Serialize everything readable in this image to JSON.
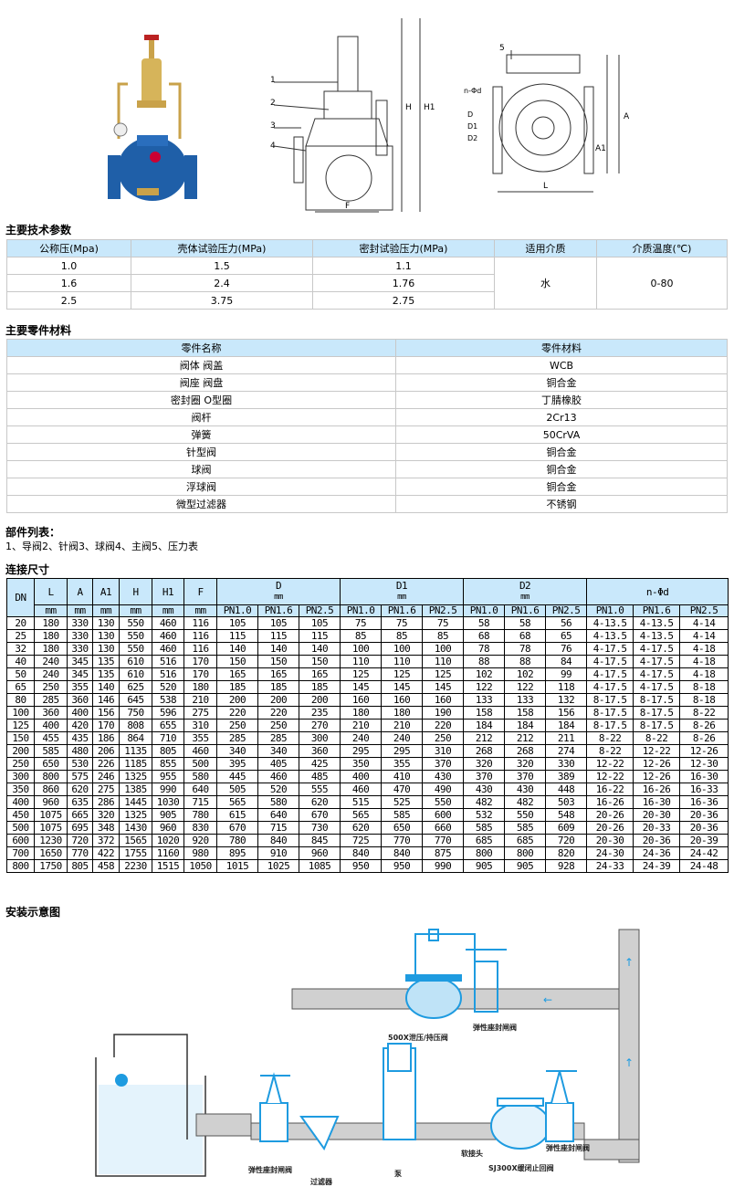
{
  "drawings": {
    "mid_labels": [
      "1",
      "2",
      "3",
      "4",
      "H",
      "H1",
      "F"
    ],
    "right_labels": [
      "5",
      "n-Φd",
      "D",
      "D1",
      "D2",
      "A",
      "A1",
      "L"
    ]
  },
  "tech": {
    "title": "主要技术参数",
    "headers": [
      "公称压(Mpa)",
      "壳体试验压力(MPa)",
      "密封试验压力(MPa)",
      "适用介质",
      "介质温度(℃)"
    ],
    "rows": [
      [
        "1.0",
        "1.5",
        "1.1"
      ],
      [
        "1.6",
        "2.4",
        "1.76"
      ],
      [
        "2.5",
        "3.75",
        "2.75"
      ]
    ],
    "medium": "水",
    "temp": "0-80"
  },
  "materials": {
    "title": "主要零件材料",
    "headers": [
      "零件名称",
      "零件材料"
    ],
    "rows": [
      [
        "阀体 阀盖",
        "WCB"
      ],
      [
        "阀座 阀盘",
        "铜合金"
      ],
      [
        "密封圈 O型圈",
        "丁腈橡胶"
      ],
      [
        "阀杆",
        "2Cr13"
      ],
      [
        "弹簧",
        "50CrVA"
      ],
      [
        "针型阀",
        "铜合金"
      ],
      [
        "球阀",
        "铜合金"
      ],
      [
        "浮球阀",
        "铜合金"
      ],
      [
        "微型过滤器",
        "不锈钢"
      ]
    ]
  },
  "parts": {
    "title": "部件列表：",
    "text": "1、导阀2、针阀3、球阀4、主阀5、压力表"
  },
  "dims": {
    "title": "连接尺寸",
    "headers": [
      "DN",
      "L",
      "A",
      "A1",
      "H",
      "H1",
      "F"
    ],
    "group_headers": [
      "D",
      "D1",
      "D2",
      "n-Φd"
    ],
    "unit": "mm",
    "pn": [
      "PN1.0",
      "PN1.6",
      "PN2.5"
    ],
    "rows": [
      [
        "20",
        "180",
        "330",
        "130",
        "550",
        "460",
        "116",
        "105",
        "105",
        "105",
        "75",
        "75",
        "75",
        "58",
        "58",
        "56",
        "4-13.5",
        "4-13.5",
        "4-14"
      ],
      [
        "25",
        "180",
        "330",
        "130",
        "550",
        "460",
        "116",
        "115",
        "115",
        "115",
        "85",
        "85",
        "85",
        "68",
        "68",
        "65",
        "4-13.5",
        "4-13.5",
        "4-14"
      ],
      [
        "32",
        "180",
        "330",
        "130",
        "550",
        "460",
        "116",
        "140",
        "140",
        "140",
        "100",
        "100",
        "100",
        "78",
        "78",
        "76",
        "4-17.5",
        "4-17.5",
        "4-18"
      ],
      [
        "40",
        "240",
        "345",
        "135",
        "610",
        "516",
        "170",
        "150",
        "150",
        "150",
        "110",
        "110",
        "110",
        "88",
        "88",
        "84",
        "4-17.5",
        "4-17.5",
        "4-18"
      ],
      [
        "50",
        "240",
        "345",
        "135",
        "610",
        "516",
        "170",
        "165",
        "165",
        "165",
        "125",
        "125",
        "125",
        "102",
        "102",
        "99",
        "4-17.5",
        "4-17.5",
        "4-18"
      ],
      [
        "65",
        "250",
        "355",
        "140",
        "625",
        "520",
        "180",
        "185",
        "185",
        "185",
        "145",
        "145",
        "145",
        "122",
        "122",
        "118",
        "4-17.5",
        "4-17.5",
        "8-18"
      ],
      [
        "80",
        "285",
        "360",
        "146",
        "645",
        "538",
        "210",
        "200",
        "200",
        "200",
        "160",
        "160",
        "160",
        "133",
        "133",
        "132",
        "8-17.5",
        "8-17.5",
        "8-18"
      ],
      [
        "100",
        "360",
        "400",
        "156",
        "750",
        "596",
        "275",
        "220",
        "220",
        "235",
        "180",
        "180",
        "190",
        "158",
        "158",
        "156",
        "8-17.5",
        "8-17.5",
        "8-22"
      ],
      [
        "125",
        "400",
        "420",
        "170",
        "808",
        "655",
        "310",
        "250",
        "250",
        "270",
        "210",
        "210",
        "220",
        "184",
        "184",
        "184",
        "8-17.5",
        "8-17.5",
        "8-26"
      ],
      [
        "150",
        "455",
        "435",
        "186",
        "864",
        "710",
        "355",
        "285",
        "285",
        "300",
        "240",
        "240",
        "250",
        "212",
        "212",
        "211",
        "8-22",
        "8-22",
        "8-26"
      ],
      [
        "200",
        "585",
        "480",
        "206",
        "1135",
        "805",
        "460",
        "340",
        "340",
        "360",
        "295",
        "295",
        "310",
        "268",
        "268",
        "274",
        "8-22",
        "12-22",
        "12-26"
      ],
      [
        "250",
        "650",
        "530",
        "226",
        "1185",
        "855",
        "500",
        "395",
        "405",
        "425",
        "350",
        "355",
        "370",
        "320",
        "320",
        "330",
        "12-22",
        "12-26",
        "12-30"
      ],
      [
        "300",
        "800",
        "575",
        "246",
        "1325",
        "955",
        "580",
        "445",
        "460",
        "485",
        "400",
        "410",
        "430",
        "370",
        "370",
        "389",
        "12-22",
        "12-26",
        "16-30"
      ],
      [
        "350",
        "860",
        "620",
        "275",
        "1385",
        "990",
        "640",
        "505",
        "520",
        "555",
        "460",
        "470",
        "490",
        "430",
        "430",
        "448",
        "16-22",
        "16-26",
        "16-33"
      ],
      [
        "400",
        "960",
        "635",
        "286",
        "1445",
        "1030",
        "715",
        "565",
        "580",
        "620",
        "515",
        "525",
        "550",
        "482",
        "482",
        "503",
        "16-26",
        "16-30",
        "16-36"
      ],
      [
        "450",
        "1075",
        "665",
        "320",
        "1325",
        "905",
        "780",
        "615",
        "640",
        "670",
        "565",
        "585",
        "600",
        "532",
        "550",
        "548",
        "20-26",
        "20-30",
        "20-36"
      ],
      [
        "500",
        "1075",
        "695",
        "348",
        "1430",
        "960",
        "830",
        "670",
        "715",
        "730",
        "620",
        "650",
        "660",
        "585",
        "585",
        "609",
        "20-26",
        "20-33",
        "20-36"
      ],
      [
        "600",
        "1230",
        "720",
        "372",
        "1565",
        "1020",
        "920",
        "780",
        "840",
        "845",
        "725",
        "770",
        "770",
        "685",
        "685",
        "720",
        "20-30",
        "20-36",
        "20-39"
      ],
      [
        "700",
        "1650",
        "770",
        "422",
        "1755",
        "1160",
        "980",
        "895",
        "910",
        "960",
        "840",
        "840",
        "875",
        "800",
        "800",
        "820",
        "24-30",
        "24-36",
        "24-42"
      ],
      [
        "800",
        "1750",
        "805",
        "458",
        "2230",
        "1515",
        "1050",
        "1015",
        "1025",
        "1085",
        "950",
        "950",
        "990",
        "905",
        "905",
        "928",
        "24-33",
        "24-39",
        "24-48"
      ]
    ]
  },
  "install": {
    "title": "安装示意图",
    "labels": [
      "500X泄压/持压阀",
      "弹性座封闸阀",
      "弹性座封闸阀",
      "过滤器",
      "泵",
      "软接头",
      "SJ300X缓闭止回阀",
      "弹性座封闸阀"
    ]
  },
  "colors": {
    "header_bg": "#c9e8fb",
    "valve_blue": "#1e9be0",
    "pipe_gray": "#d0d0d0"
  }
}
